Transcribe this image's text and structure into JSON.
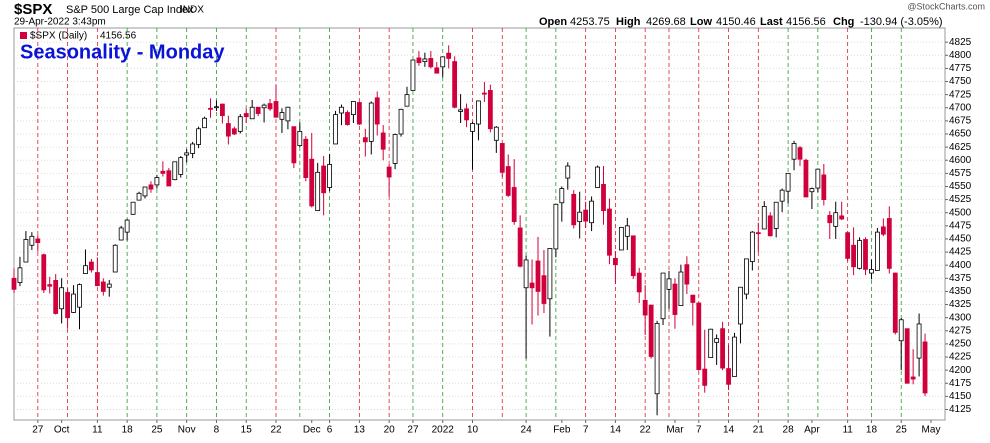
{
  "chart_data": {
    "type": "candlestick",
    "title": "Seasonality - Monday",
    "header": {
      "symbol": "$SPX",
      "name": "S&P 500 Large Cap Index",
      "exchange": "INDX",
      "timestamp": "29-Apr-2022 3:43pm",
      "open_label": "Open",
      "high_label": "High",
      "low_label": "Low",
      "last_label": "Last",
      "chg_label": "Chg",
      "chg": "-130.94 (-3.05%)",
      "watermark": "@StockCharts.com"
    },
    "legend_label": "$SPX (Daily)",
    "up_color": "#000000",
    "down_color": "#d0003c",
    "grid": true,
    "series": [
      {
        "name": "$SPX",
        "open": [
          4375,
          4367,
          4406,
          4438,
          4450,
          4420,
          4363,
          4371,
          4317,
          4348,
          4310,
          4320,
          4384,
          4406,
          4386,
          4368,
          4358,
          4387,
          4448,
          4463,
          4497,
          4524,
          4532,
          4553,
          4553,
          4579,
          4580,
          4563,
          4573,
          4610,
          4613,
          4630,
          4662,
          4699,
          4701,
          4707,
          4670,
          4660,
          4655,
          4689,
          4679,
          4701,
          4700,
          4708,
          4712,
          4678,
          4675,
          4664,
          4628,
          4640,
          4602,
          4504,
          4589,
          4548,
          4631,
          4690,
          4691,
          4687,
          4710,
          4643,
          4636,
          4719,
          4652,
          4587,
          4594,
          4650,
          4703,
          4733,
          4795,
          4788,
          4794,
          4776,
          4778,
          4804,
          4788,
          4693,
          4698,
          4655,
          4669,
          4728,
          4733,
          4638,
          4632,
          4588,
          4548,
          4471,
          4357,
          4366,
          4408,
          4380,
          4336,
          4431,
          4519,
          4566,
          4535,
          4483,
          4505,
          4481,
          4548,
          4554,
          4507,
          4413,
          4429,
          4455,
          4456,
          4385,
          4333,
          4324,
          4155,
          4298,
          4354,
          4364,
          4323,
          4401,
          4343,
          4328,
          4202,
          4224,
          4253,
          4279,
          4203,
          4188,
          4288,
          4345,
          4407,
          4462,
          4469,
          4494,
          4470,
          4522,
          4541,
          4602,
          4624,
          4600,
          4540,
          4547,
          4572,
          4495,
          4474,
          4494,
          4462,
          4438,
          4394,
          4449,
          4385,
          4390,
          4473,
          4489,
          4385,
          4256,
          4279,
          4187,
          4223,
          4253.75
        ],
        "high": [
          4394,
          4416,
          4465,
          4463,
          4457,
          4422,
          4378,
          4383,
          4375,
          4356,
          4362,
          4365,
          4430,
          4412,
          4415,
          4375,
          4372,
          4440,
          4475,
          4488,
          4520,
          4540,
          4549,
          4560,
          4572,
          4598,
          4585,
          4597,
          4608,
          4621,
          4635,
          4664,
          4683,
          4718,
          4714,
          4708,
          4685,
          4664,
          4688,
          4698,
          4715,
          4701,
          4708,
          4717,
          4743,
          4699,
          4702,
          4664,
          4672,
          4646,
          4652,
          4595,
          4608,
          4612,
          4694,
          4706,
          4695,
          4713,
          4711,
          4660,
          4712,
          4731,
          4667,
          4592,
          4651,
          4698,
          4740,
          4791,
          4808,
          4805,
          4808,
          4787,
          4797,
          4819,
          4798,
          4726,
          4708,
          4673,
          4714,
          4749,
          4744,
          4665,
          4632,
          4611,
          4602,
          4495,
          4418,
          4411,
          4454,
          4429,
          4432,
          4516,
          4550,
          4596,
          4543,
          4540,
          4521,
          4531,
          4590,
          4589,
          4527,
          4427,
          4473,
          4490,
          4456,
          4395,
          4362,
          4324,
          4294,
          4385,
          4389,
          4375,
          4401,
          4417,
          4343,
          4328,
          4277,
          4279,
          4268,
          4292,
          4248,
          4271,
          4358,
          4412,
          4465,
          4481,
          4522,
          4501,
          4520,
          4546,
          4575,
          4637,
          4627,
          4603,
          4548,
          4583,
          4593,
          4503,
          4521,
          4521,
          4464,
          4472,
          4453,
          4453,
          4411,
          4471,
          4489,
          4512,
          4386,
          4299,
          4279,
          4240,
          4308,
          4269.68
        ],
        "low": [
          4347,
          4360,
          4406,
          4429,
          4426,
          4347,
          4346,
          4306,
          4289,
          4279,
          4309,
          4278,
          4384,
          4386,
          4360,
          4342,
          4340,
          4387,
          4447,
          4447,
          4496,
          4524,
          4527,
          4538,
          4546,
          4569,
          4551,
          4562,
          4567,
          4596,
          4604,
          4623,
          4662,
          4681,
          4694,
          4670,
          4630,
          4648,
          4651,
          4671,
          4679,
          4684,
          4672,
          4694,
          4681,
          4652,
          4659,
          4585,
          4625,
          4560,
          4510,
          4504,
          4495,
          4541,
          4631,
          4667,
          4666,
          4671,
          4667,
          4607,
          4611,
          4647,
          4600,
          4531,
          4583,
          4645,
          4703,
          4733,
          4780,
          4778,
          4775,
          4765,
          4758,
          4775,
          4699,
          4671,
          4663,
          4582,
          4638,
          4711,
          4653,
          4614,
          4568,
          4530,
          4477,
          4396,
          4222,
          4287,
          4304,
          4309,
          4264,
          4415,
          4483,
          4544,
          4470,
          4451,
          4471,
          4465,
          4548,
          4477,
          4402,
          4364,
          4429,
          4429,
          4374,
          4328,
          4267,
          4222,
          4114,
          4286,
          4317,
          4279,
          4323,
          4345,
          4285,
          4199,
          4157,
          4224,
          4210,
          4200,
          4162,
          4188,
          4251,
          4335,
          4390,
          4425,
          4469,
          4455,
          4453,
          4501,
          4518,
          4581,
          4589,
          4530,
          4507,
          4539,
          4514,
          4450,
          4450,
          4486,
          4408,
          4381,
          4392,
          4381,
          4373,
          4390,
          4455,
          4384,
          4268,
          4200,
          4175,
          4173,
          4188,
          4150.46
        ],
        "close": [
          4354,
          4395,
          4449,
          4455,
          4443,
          4353,
          4360,
          4308,
          4357,
          4300,
          4345,
          4363,
          4399,
          4391,
          4361,
          4350,
          4364,
          4438,
          4471,
          4486,
          4520,
          4537,
          4549,
          4545,
          4567,
          4575,
          4551,
          4597,
          4605,
          4614,
          4631,
          4660,
          4680,
          4697,
          4702,
          4685,
          4646,
          4650,
          4683,
          4683,
          4701,
          4689,
          4705,
          4698,
          4682,
          4691,
          4701,
          4595,
          4655,
          4567,
          4513,
          4577,
          4538,
          4592,
          4687,
          4701,
          4668,
          4712,
          4669,
          4635,
          4709,
          4669,
          4621,
          4568,
          4649,
          4697,
          4725,
          4791,
          4786,
          4793,
          4778,
          4766,
          4797,
          4794,
          4701,
          4696,
          4677,
          4670,
          4713,
          4726,
          4660,
          4663,
          4577,
          4533,
          4483,
          4398,
          4410,
          4357,
          4350,
          4327,
          4432,
          4516,
          4546,
          4589,
          4477,
          4501,
          4484,
          4522,
          4587,
          4504,
          4419,
          4401,
          4472,
          4475,
          4380,
          4349,
          4305,
          4226,
          4289,
          4385,
          4374,
          4306,
          4387,
          4364,
          4329,
          4201,
          4171,
          4278,
          4260,
          4204,
          4173,
          4263,
          4358,
          4412,
          4463,
          4461,
          4512,
          4456,
          4520,
          4543,
          4575,
          4632,
          4602,
          4530,
          4546,
          4583,
          4525,
          4481,
          4500,
          4488,
          4413,
          4397,
          4447,
          4392,
          4392,
          4463,
          4459,
          4394,
          4272,
          4296,
          4175,
          4183,
          4288,
          4156.56
        ]
      }
    ],
    "vlines": [
      4,
      9,
      14,
      19,
      24,
      29,
      34,
      39,
      44,
      48,
      53,
      58,
      63,
      67,
      72,
      77,
      82,
      86,
      91,
      96,
      101,
      106,
      110,
      115,
      120,
      125,
      130,
      135,
      140,
      144,
      149
    ],
    "xlim": [
      0,
      154
    ],
    "xticks": [
      {
        "value": 4,
        "label": "27"
      },
      {
        "value": 8,
        "label": "Oct"
      },
      {
        "value": 14,
        "label": "11"
      },
      {
        "value": 19,
        "label": "18"
      },
      {
        "value": 24,
        "label": "25"
      },
      {
        "value": 29,
        "label": "Nov"
      },
      {
        "value": 34,
        "label": "8"
      },
      {
        "value": 39,
        "label": "15"
      },
      {
        "value": 44,
        "label": "22"
      },
      {
        "value": 50,
        "label": "Dec"
      },
      {
        "value": 53,
        "label": "6"
      },
      {
        "value": 58,
        "label": "13"
      },
      {
        "value": 63,
        "label": "20"
      },
      {
        "value": 67,
        "label": "27"
      },
      {
        "value": 72,
        "label": "2022"
      },
      {
        "value": 77,
        "label": "10"
      },
      {
        "value": 86,
        "label": "24"
      },
      {
        "value": 92,
        "label": "Feb"
      },
      {
        "value": 96,
        "label": "7"
      },
      {
        "value": 101,
        "label": "14"
      },
      {
        "value": 106,
        "label": "22"
      },
      {
        "value": 111,
        "label": "Mar"
      },
      {
        "value": 115,
        "label": "7"
      },
      {
        "value": 120,
        "label": "14"
      },
      {
        "value": 125,
        "label": "21"
      },
      {
        "value": 130,
        "label": "28"
      },
      {
        "value": 134,
        "label": "Apr"
      },
      {
        "value": 140,
        "label": "11"
      },
      {
        "value": 144,
        "label": "18"
      },
      {
        "value": 149,
        "label": "25"
      },
      {
        "value": 154,
        "label": "May"
      }
    ],
    "ylim": [
      4105,
      4852
    ],
    "yticks": [
      4125,
      4150,
      4175,
      4200,
      4225,
      4250,
      4275,
      4300,
      4325,
      4350,
      4375,
      4400,
      4425,
      4450,
      4475,
      4500,
      4525,
      4550,
      4575,
      4600,
      4625,
      4650,
      4675,
      4700,
      4725,
      4750,
      4775,
      4800,
      4825
    ]
  }
}
